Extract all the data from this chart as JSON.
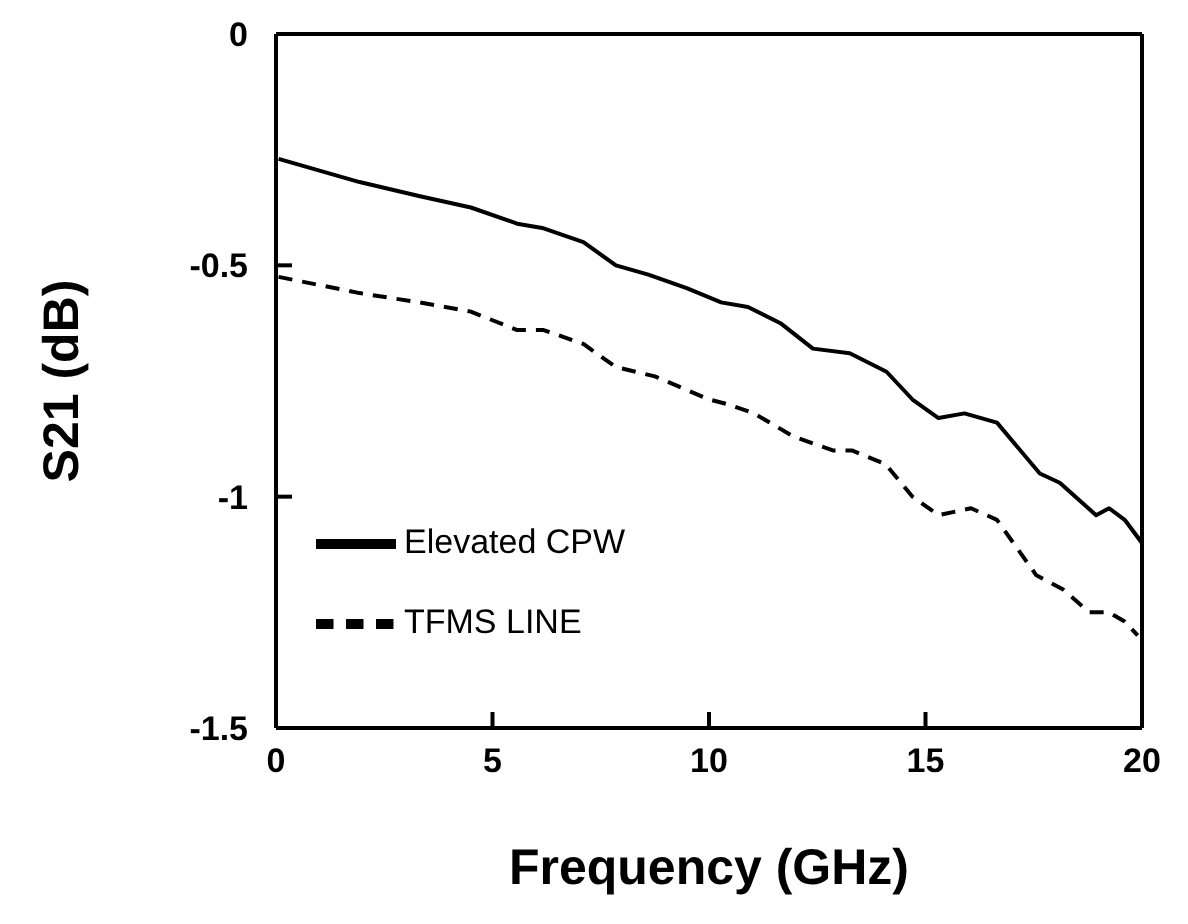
{
  "chart_data": {
    "type": "line",
    "xlabel": "Frequency (GHz)",
    "ylabel": "S21 (dB)",
    "xlim": [
      0,
      20
    ],
    "ylim": [
      -1.5,
      0
    ],
    "xticks": [
      0,
      5,
      10,
      15,
      20
    ],
    "yticks": [
      -1.5,
      -1,
      -0.5,
      0
    ],
    "grid": false,
    "legend": "bottom left",
    "marker": "none",
    "series": [
      {
        "name": "Elevated CPW",
        "color": "#000000",
        "line_style": "solid",
        "x": [
          0.06,
          1.93,
          3.3,
          4.5,
          5.57,
          6.18,
          7.1,
          7.85,
          8.6,
          9.5,
          10.28,
          10.9,
          11.65,
          12.4,
          13.25,
          14.1,
          14.7,
          15.3,
          15.9,
          16.65,
          17.64,
          18.1,
          18.94,
          19.24,
          19.6,
          20
        ],
        "values": [
          -0.27,
          -0.32,
          -0.35,
          -0.375,
          -0.41,
          -0.42,
          -0.45,
          -0.5,
          -0.52,
          -0.55,
          -0.58,
          -0.59,
          -0.625,
          -0.68,
          -0.69,
          -0.73,
          -0.79,
          -0.83,
          -0.82,
          -0.84,
          -0.95,
          -0.97,
          -1.04,
          -1.025,
          -1.05,
          -1.1
        ]
      },
      {
        "name": "TFMS LINE",
        "color": "#000000",
        "line_style": "dashed",
        "x": [
          0.06,
          1.93,
          3.3,
          4.5,
          5.57,
          6.18,
          7.1,
          7.85,
          8.75,
          10.0,
          10.43,
          11.04,
          11.95,
          12.86,
          13.3,
          14.08,
          14.7,
          15.3,
          16.05,
          16.65,
          17.56,
          18.17,
          18.78,
          19.24,
          19.6,
          19.9
        ],
        "values": [
          -0.525,
          -0.56,
          -0.58,
          -0.6,
          -0.64,
          -0.64,
          -0.67,
          -0.72,
          -0.74,
          -0.79,
          -0.8,
          -0.82,
          -0.87,
          -0.9,
          -0.9,
          -0.93,
          -1.0,
          -1.04,
          -1.025,
          -1.05,
          -1.17,
          -1.2,
          -1.25,
          -1.25,
          -1.27,
          -1.3
        ]
      }
    ]
  }
}
